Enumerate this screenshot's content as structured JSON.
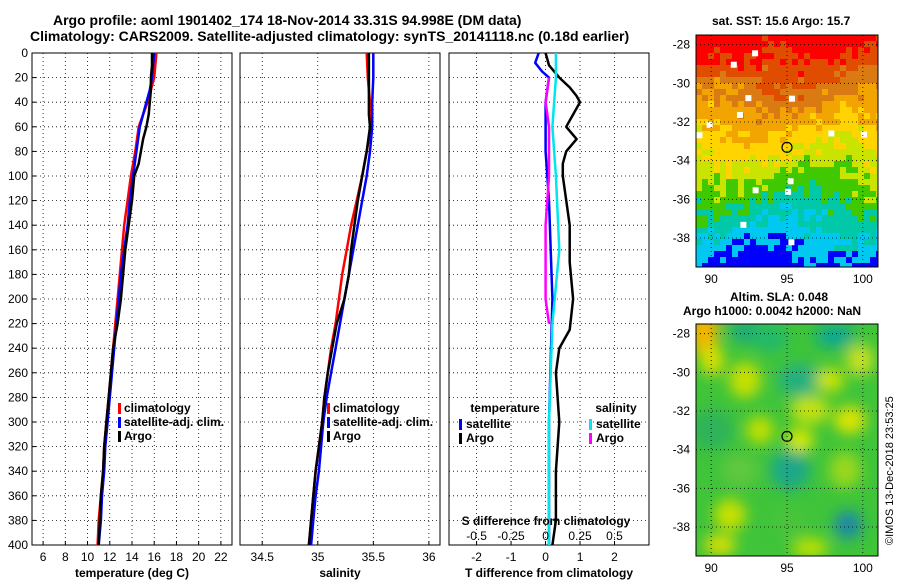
{
  "title_line1": "Argo profile: aoml 1901402_174 18-Nov-2014 33.31S 94.998E (DM data)",
  "title_line2": "Climatology: CARS2009. Satellite-adjusted climatology: synTS_20141118.nc (0.18d earlier)",
  "map_sst_title": "sat. SST: 15.6 Argo: 15.7",
  "map_sla_title1": "Altim. SLA: 0.048",
  "map_sla_title2": "Argo h1000: 0.0042 h2000: NaN",
  "timestamp": "©IMOS 13-Dec-2018 23:53:25",
  "colors": {
    "climatology": "#ff0000",
    "satellite": "#0000ff",
    "argo": "#000000",
    "sat_salinity": "#00e5ee",
    "argo_salinity": "#ff00ff",
    "t_diff_sat": "#0000ff"
  },
  "chart_data": [
    {
      "type": "line",
      "name": "temperature",
      "xlabel": "temperature (deg C)",
      "xlim": [
        5,
        23
      ],
      "ylim": [
        400,
        0
      ],
      "xticks": [
        "6",
        "8",
        "10",
        "12",
        "14",
        "16",
        "18",
        "20",
        "22"
      ],
      "xtick_values": [
        6,
        8,
        10,
        12,
        14,
        16,
        18,
        20,
        22
      ],
      "yticks": [
        "0",
        "20",
        "40",
        "60",
        "80",
        "100",
        "120",
        "140",
        "160",
        "180",
        "200",
        "220",
        "240",
        "260",
        "280",
        "300",
        "320",
        "340",
        "360",
        "380",
        "400"
      ],
      "ytick_values": [
        0,
        20,
        40,
        60,
        80,
        100,
        120,
        140,
        160,
        180,
        200,
        220,
        240,
        260,
        280,
        300,
        320,
        340,
        360,
        380,
        400
      ],
      "legend": [
        "climatology",
        "satellite-adj. clim.",
        "Argo"
      ],
      "series": [
        {
          "name": "climatology",
          "color": "#ff0000",
          "points": [
            [
              16.2,
              0
            ],
            [
              16.1,
              10
            ],
            [
              16.0,
              20
            ],
            [
              15.7,
              30
            ],
            [
              15.4,
              40
            ],
            [
              15.0,
              50
            ],
            [
              14.6,
              60
            ],
            [
              14.3,
              80
            ],
            [
              13.9,
              100
            ],
            [
              13.6,
              120
            ],
            [
              13.3,
              140
            ],
            [
              13.1,
              160
            ],
            [
              12.9,
              180
            ],
            [
              12.7,
              200
            ],
            [
              12.5,
              220
            ],
            [
              12.3,
              240
            ],
            [
              12.1,
              260
            ],
            [
              11.9,
              280
            ],
            [
              11.7,
              300
            ],
            [
              11.5,
              320
            ],
            [
              11.4,
              340
            ],
            [
              11.2,
              360
            ],
            [
              11.0,
              380
            ],
            [
              10.9,
              400
            ]
          ]
        },
        {
          "name": "satellite-adj. clim.",
          "color": "#0000ff",
          "points": [
            [
              16.0,
              0
            ],
            [
              15.9,
              10
            ],
            [
              15.8,
              20
            ],
            [
              15.6,
              30
            ],
            [
              15.3,
              40
            ],
            [
              15.0,
              50
            ],
            [
              14.7,
              60
            ],
            [
              14.4,
              80
            ],
            [
              14.1,
              100
            ],
            [
              13.8,
              120
            ],
            [
              13.6,
              140
            ],
            [
              13.3,
              160
            ],
            [
              13.0,
              180
            ],
            [
              12.8,
              200
            ],
            [
              12.6,
              220
            ],
            [
              12.4,
              240
            ],
            [
              12.2,
              260
            ],
            [
              12.0,
              280
            ],
            [
              11.8,
              300
            ],
            [
              11.6,
              320
            ],
            [
              11.5,
              340
            ],
            [
              11.3,
              360
            ],
            [
              11.2,
              380
            ],
            [
              11.0,
              400
            ]
          ]
        },
        {
          "name": "Argo",
          "color": "#000000",
          "points": [
            [
              15.8,
              0
            ],
            [
              15.8,
              10
            ],
            [
              15.7,
              20
            ],
            [
              15.7,
              30
            ],
            [
              15.6,
              40
            ],
            [
              15.5,
              50
            ],
            [
              15.3,
              60
            ],
            [
              15.0,
              70
            ],
            [
              14.8,
              80
            ],
            [
              14.6,
              90
            ],
            [
              14.2,
              100
            ],
            [
              14.0,
              120
            ],
            [
              13.7,
              140
            ],
            [
              13.4,
              160
            ],
            [
              13.2,
              180
            ],
            [
              13.0,
              200
            ],
            [
              12.7,
              220
            ],
            [
              12.3,
              240
            ],
            [
              12.1,
              260
            ],
            [
              11.9,
              280
            ],
            [
              11.7,
              300
            ],
            [
              11.5,
              320
            ],
            [
              11.4,
              340
            ],
            [
              11.2,
              360
            ],
            [
              11.1,
              380
            ],
            [
              11.0,
              400
            ]
          ]
        }
      ]
    },
    {
      "type": "line",
      "name": "salinity",
      "xlabel": "salinity",
      "xlim": [
        34.3,
        36.1
      ],
      "ylim": [
        400,
        0
      ],
      "xticks": [
        "34.5",
        "35",
        "35.5",
        "36"
      ],
      "xtick_values": [
        34.5,
        35,
        35.5,
        36
      ],
      "legend": [
        "climatology",
        "satellite-adj. clim.",
        "Argo"
      ],
      "series": [
        {
          "name": "climatology",
          "color": "#ff0000",
          "points": [
            [
              35.44,
              0
            ],
            [
              35.45,
              20
            ],
            [
              35.47,
              40
            ],
            [
              35.48,
              60
            ],
            [
              35.44,
              80
            ],
            [
              35.4,
              100
            ],
            [
              35.35,
              120
            ],
            [
              35.3,
              140
            ],
            [
              35.26,
              160
            ],
            [
              35.22,
              180
            ],
            [
              35.19,
              200
            ],
            [
              35.16,
              220
            ],
            [
              35.12,
              240
            ],
            [
              35.09,
              260
            ],
            [
              35.06,
              280
            ],
            [
              35.04,
              300
            ],
            [
              35.01,
              320
            ],
            [
              34.98,
              340
            ],
            [
              34.96,
              360
            ],
            [
              34.94,
              380
            ],
            [
              34.92,
              400
            ]
          ]
        },
        {
          "name": "satellite-adj. clim.",
          "color": "#0000ff",
          "points": [
            [
              35.5,
              0
            ],
            [
              35.5,
              20
            ],
            [
              35.49,
              40
            ],
            [
              35.49,
              60
            ],
            [
              35.47,
              80
            ],
            [
              35.44,
              100
            ],
            [
              35.4,
              120
            ],
            [
              35.36,
              140
            ],
            [
              35.32,
              160
            ],
            [
              35.28,
              180
            ],
            [
              35.24,
              200
            ],
            [
              35.2,
              220
            ],
            [
              35.16,
              240
            ],
            [
              35.12,
              260
            ],
            [
              35.08,
              280
            ],
            [
              35.05,
              300
            ],
            [
              35.03,
              320
            ],
            [
              35.01,
              340
            ],
            [
              34.98,
              360
            ],
            [
              34.96,
              380
            ],
            [
              34.94,
              400
            ]
          ]
        },
        {
          "name": "Argo",
          "color": "#000000",
          "points": [
            [
              35.46,
              0
            ],
            [
              35.46,
              20
            ],
            [
              35.46,
              40
            ],
            [
              35.46,
              50
            ],
            [
              35.47,
              60
            ],
            [
              35.44,
              80
            ],
            [
              35.4,
              100
            ],
            [
              35.36,
              120
            ],
            [
              35.33,
              140
            ],
            [
              35.3,
              160
            ],
            [
              35.28,
              180
            ],
            [
              35.24,
              200
            ],
            [
              35.17,
              220
            ],
            [
              35.13,
              240
            ],
            [
              35.09,
              260
            ],
            [
              35.06,
              280
            ],
            [
              35.04,
              300
            ],
            [
              35.01,
              320
            ],
            [
              34.98,
              340
            ],
            [
              34.96,
              360
            ],
            [
              34.94,
              380
            ],
            [
              34.92,
              400
            ]
          ]
        }
      ]
    },
    {
      "type": "line",
      "name": "difference",
      "xlabel": "T difference from climatology",
      "top_axis_label": "S difference from climatology",
      "xlim": [
        -2.8,
        3.0
      ],
      "ylim": [
        400,
        0
      ],
      "xticks": [
        "-2",
        "-1",
        "0",
        "1",
        "2"
      ],
      "xtick_values": [
        -2,
        -1,
        0,
        1,
        2
      ],
      "s_ticks": [
        "-0.5",
        "-0.25",
        "0",
        "0.25",
        "0.5"
      ],
      "s_tick_values": [
        -2,
        -1,
        0,
        1,
        2
      ],
      "legend_temperature_title": "temperature",
      "legend_salinity_title": "salinity",
      "legend_temperature": [
        "satellite",
        "Argo"
      ],
      "legend_salinity": [
        "satellite",
        "Argo"
      ],
      "series": [
        {
          "name": "temperature satellite",
          "color": "#0000ff",
          "points": [
            [
              -0.2,
              0
            ],
            [
              -0.3,
              8
            ],
            [
              -0.1,
              15
            ],
            [
              0.1,
              20
            ],
            [
              0.0,
              40
            ],
            [
              0.0,
              80
            ],
            [
              0.1,
              120
            ],
            [
              0.2,
              200
            ],
            [
              0.1,
              300
            ],
            [
              0.1,
              400
            ]
          ]
        },
        {
          "name": "temperature Argo",
          "color": "#000000",
          "points": [
            [
              0.0,
              0
            ],
            [
              0.1,
              10
            ],
            [
              0.4,
              20
            ],
            [
              0.7,
              28
            ],
            [
              0.9,
              35
            ],
            [
              1.0,
              40
            ],
            [
              0.8,
              50
            ],
            [
              0.6,
              60
            ],
            [
              0.9,
              70
            ],
            [
              0.6,
              80
            ],
            [
              0.5,
              90
            ],
            [
              0.5,
              100
            ],
            [
              0.7,
              140
            ],
            [
              0.7,
              170
            ],
            [
              0.8,
              200
            ],
            [
              0.7,
              225
            ],
            [
              0.4,
              240
            ],
            [
              0.3,
              260
            ],
            [
              0.4,
              300
            ],
            [
              0.3,
              340
            ],
            [
              0.3,
              380
            ],
            [
              0.2,
              400
            ]
          ]
        },
        {
          "name": "salinity satellite",
          "color": "#00e5ee",
          "points": [
            [
              0.3,
              0
            ],
            [
              0.3,
              20
            ],
            [
              0.2,
              60
            ],
            [
              0.3,
              100
            ],
            [
              0.4,
              160
            ],
            [
              0.2,
              220
            ],
            [
              0.1,
              300
            ],
            [
              0.1,
              400
            ]
          ]
        },
        {
          "name": "salinity Argo",
          "color": "#ff00ff",
          "points": [
            [
              0.1,
              20
            ],
            [
              0.0,
              40
            ],
            [
              0.1,
              60
            ],
            [
              0.1,
              100
            ],
            [
              0.0,
              140
            ],
            [
              0.0,
              200
            ],
            [
              0.1,
              220
            ]
          ]
        }
      ]
    },
    {
      "type": "heatmap",
      "name": "sst_map",
      "xlim": [
        89,
        101
      ],
      "ylim": [
        -39.5,
        -27.5
      ],
      "xticks": [
        "90",
        "95",
        "100"
      ],
      "xtick_values": [
        90,
        95,
        100
      ],
      "yticks": [
        "-28",
        "-30",
        "-32",
        "-34",
        "-36",
        "-38"
      ],
      "ytick_values": [
        -28,
        -30,
        -32,
        -34,
        -36,
        -38
      ],
      "marker": [
        95.0,
        -33.31
      ]
    },
    {
      "type": "heatmap",
      "name": "sla_map",
      "xlim": [
        89,
        101
      ],
      "ylim": [
        -39.5,
        -27.5
      ],
      "xticks": [
        "90",
        "95",
        "100"
      ],
      "xtick_values": [
        90,
        95,
        100
      ],
      "yticks": [
        "-28",
        "-30",
        "-32",
        "-34",
        "-36",
        "-38"
      ],
      "ytick_values": [
        -28,
        -30,
        -32,
        -34,
        -36,
        -38
      ],
      "marker": [
        95.0,
        -33.31
      ]
    }
  ]
}
